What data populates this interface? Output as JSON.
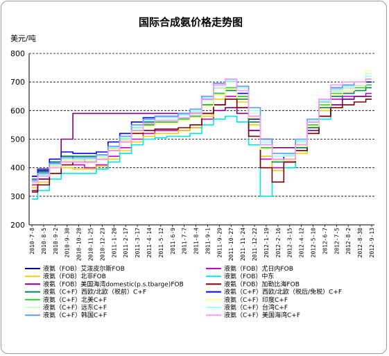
{
  "chart_data": {
    "type": "line",
    "title": "国际合成氨价格走势图",
    "ylabel": "美元/吨",
    "xlabel": "",
    "ylim": [
      200,
      800
    ],
    "yticks": [
      200,
      300,
      400,
      500,
      600,
      700,
      800
    ],
    "grid": "horizontal dashed",
    "legend_position": "bottom, two columns",
    "x": [
      "2010-7-8",
      "2010-8-5",
      "2010-9-2",
      "2010-9-30",
      "2010-10-28",
      "2010-11-25",
      "2010-12-23",
      "2011-1-20",
      "2011-2-17",
      "2011-3-17",
      "2011-4-14",
      "2011-5-12",
      "2011-6-9",
      "2011-7-7",
      "2011-8-4",
      "2011-9-1",
      "2011-9-29",
      "2011-10-27",
      "2011-11-24",
      "2011-12-22",
      "2012-1-19",
      "2012-2-16",
      "2012-3-15",
      "2012-4-12",
      "2012-5-10",
      "2012-6-7",
      "2012-7-5",
      "2012-8-2",
      "2012-8-30",
      "2012-9-13"
    ],
    "series": [
      {
        "name": "液氨（FOB）艾泼皮尔斯FOB",
        "color": "#000080",
        "values": [
          370,
          390,
          420,
          440,
          430,
          420,
          430,
          470,
          500,
          530,
          550,
          560,
          560,
          570,
          580,
          620,
          680,
          700,
          650,
          570,
          480,
          430,
          420,
          470,
          560,
          630,
          680,
          690,
          690,
          690
        ]
      },
      {
        "name": "液氨（FOB）尤日内FOB",
        "color": "#cc00cc",
        "values": [
          340,
          360,
          400,
          420,
          410,
          400,
          410,
          440,
          470,
          500,
          520,
          530,
          530,
          530,
          540,
          570,
          620,
          650,
          610,
          530,
          430,
          400,
          420,
          460,
          540,
          600,
          640,
          650,
          650,
          660
        ]
      },
      {
        "name": "液氨（FOB）北非FOB",
        "color": "#f0d000",
        "values": [
          330,
          350,
          380,
          400,
          395,
          395,
          405,
          430,
          460,
          490,
          510,
          520,
          520,
          530,
          540,
          580,
          640,
          670,
          630,
          550,
          440,
          390,
          400,
          450,
          530,
          600,
          650,
          660,
          670,
          690
        ]
      },
      {
        "name": "液氨（FOB）中东",
        "color": "#00e5e5",
        "values": [
          290,
          320,
          360,
          380,
          380,
          380,
          395,
          420,
          450,
          480,
          500,
          505,
          510,
          510,
          520,
          550,
          570,
          580,
          560,
          480,
          300,
          350,
          400,
          460,
          520,
          570,
          620,
          640,
          650,
          650
        ]
      },
      {
        "name": "液氨（FOB）美国海湾domestic(p.s.tbarge)FOB",
        "color": "#800080",
        "values": [
          320,
          360,
          410,
          500,
          590,
          590,
          590,
          590,
          590,
          590,
          590,
          590,
          590,
          590,
          590,
          590,
          600,
          610,
          590,
          530,
          500,
          470,
          470,
          480,
          530,
          580,
          620,
          640,
          650,
          650
        ]
      },
      {
        "name": "液氨（FOB）加勒比海FOB",
        "color": "#800000",
        "values": [
          315,
          340,
          380,
          410,
          420,
          420,
          430,
          460,
          490,
          520,
          530,
          535,
          535,
          540,
          550,
          590,
          620,
          640,
          610,
          510,
          400,
          350,
          420,
          460,
          520,
          580,
          610,
          620,
          630,
          640
        ]
      },
      {
        "name": "液氨（C+F）西欧/北欧（税前）C+F",
        "color": "#008060",
        "values": [
          360,
          385,
          420,
          440,
          440,
          440,
          445,
          470,
          500,
          540,
          560,
          565,
          565,
          570,
          580,
          620,
          660,
          670,
          640,
          560,
          470,
          420,
          430,
          470,
          540,
          610,
          650,
          660,
          670,
          680
        ]
      },
      {
        "name": "液氨（C+F）西欧/北欧（税后/免税）C+F",
        "color": "#0000ff",
        "values": [
          370,
          395,
          430,
          455,
          450,
          450,
          455,
          490,
          520,
          560,
          575,
          580,
          580,
          585,
          595,
          640,
          690,
          700,
          660,
          580,
          500,
          430,
          440,
          490,
          560,
          630,
          670,
          680,
          690,
          700
        ]
      },
      {
        "name": "液氨（C+F）北美C+F",
        "color": "#33cc33",
        "values": [
          350,
          375,
          410,
          430,
          430,
          430,
          440,
          470,
          500,
          530,
          550,
          560,
          560,
          570,
          580,
          620,
          660,
          680,
          650,
          580,
          470,
          430,
          430,
          480,
          550,
          620,
          660,
          670,
          680,
          690
        ]
      },
      {
        "name": "液氨（C+F）印度C+F",
        "color": "#ffff99",
        "values": [
          345,
          370,
          405,
          425,
          425,
          425,
          435,
          465,
          495,
          525,
          545,
          555,
          555,
          565,
          575,
          615,
          655,
          675,
          645,
          575,
          465,
          425,
          425,
          475,
          545,
          615,
          655,
          670,
          690,
          740
        ]
      },
      {
        "name": "液氨（C+F）远东C+F",
        "color": "#ccffcc",
        "values": [
          355,
          380,
          415,
          435,
          435,
          435,
          445,
          475,
          505,
          545,
          565,
          575,
          575,
          585,
          595,
          635,
          680,
          700,
          670,
          590,
          480,
          440,
          440,
          490,
          560,
          630,
          670,
          680,
          700,
          730
        ]
      },
      {
        "name": "液氨（C+F）台湾C+F",
        "color": "#99ffff",
        "values": [
          350,
          375,
          410,
          430,
          430,
          430,
          440,
          470,
          500,
          540,
          565,
          575,
          575,
          585,
          600,
          645,
          690,
          705,
          680,
          600,
          490,
          440,
          445,
          495,
          565,
          635,
          675,
          685,
          700,
          720
        ]
      },
      {
        "name": "液氨（C+F）韩国C+F",
        "color": "#6699ff",
        "values": [
          355,
          380,
          415,
          435,
          435,
          435,
          445,
          475,
          510,
          550,
          570,
          580,
          580,
          590,
          605,
          650,
          695,
          710,
          685,
          610,
          500,
          450,
          450,
          500,
          570,
          640,
          680,
          690,
          700,
          710
        ]
      },
      {
        "name": "液氨（C+F）美国海湾C+F",
        "color": "#ff99ff",
        "values": [
          350,
          370,
          400,
          420,
          420,
          420,
          430,
          460,
          490,
          530,
          555,
          565,
          565,
          575,
          590,
          640,
          690,
          710,
          670,
          580,
          480,
          430,
          430,
          480,
          560,
          640,
          690,
          700,
          700,
          710
        ]
      }
    ]
  }
}
